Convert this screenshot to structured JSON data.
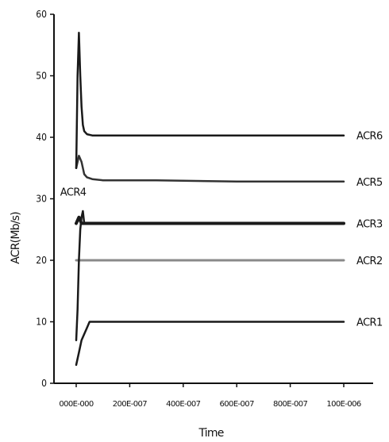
{
  "chart_data": {
    "type": "line",
    "title": "",
    "xlabel": "Time",
    "ylabel": "ACR(Mb/s)",
    "xlim": [
      0,
      1e-06
    ],
    "ylim": [
      0,
      60
    ],
    "x_tick_values": [
      0,
      2e-07,
      4e-07,
      6e-07,
      8e-07,
      1e-06
    ],
    "x_tick_labels": [
      "000E-000",
      "200E-007",
      "400E-007",
      "600E-007",
      "800E-007",
      "100E-006"
    ],
    "y_ticks": [
      0,
      10,
      20,
      30,
      40,
      50,
      60
    ],
    "grid": false,
    "legend": "none",
    "series": [
      {
        "name": "ACR1",
        "color": "#1a1a1a",
        "x": [
          0,
          1e-08,
          2e-08,
          3e-08,
          4e-08,
          5e-08,
          1e-06
        ],
        "y": [
          3,
          5,
          7,
          8,
          9,
          10,
          10
        ]
      },
      {
        "name": "ACR2",
        "color": "#8a8a8a",
        "x": [
          0,
          1e-08,
          2e-08,
          3e-08,
          4e-08,
          1e-06
        ],
        "y": [
          20,
          20,
          20,
          20,
          20,
          20
        ]
      },
      {
        "name": "ACR3",
        "color": "#1a1a1a",
        "x": [
          0,
          1e-08,
          2e-08,
          3e-08,
          1e-06
        ],
        "y": [
          26,
          27,
          26,
          26,
          26
        ]
      },
      {
        "name": "ACR4",
        "color": "#1a1a1a",
        "x": [
          0,
          5e-09,
          1e-08,
          1.5e-08,
          2e-08,
          2.5e-08,
          3e-08
        ],
        "y": [
          7,
          12,
          20,
          25,
          27,
          28,
          26
        ]
      },
      {
        "name": "ACR5",
        "color": "#333333",
        "x": [
          0,
          1e-08,
          2e-08,
          3e-08,
          4e-08,
          6e-08,
          1e-07,
          3e-07,
          6e-07,
          1e-06
        ],
        "y": [
          35,
          37,
          36,
          34,
          33.5,
          33.2,
          33,
          33,
          32.8,
          32.8
        ]
      },
      {
        "name": "ACR6",
        "color": "#1a1a1a",
        "x": [
          0,
          5e-09,
          1e-08,
          1.5e-08,
          2e-08,
          2.5e-08,
          3e-08,
          4e-08,
          6e-08,
          1e-06
        ],
        "y": [
          35,
          50,
          57,
          50,
          45,
          42,
          41,
          40.5,
          40.3,
          40.3
        ]
      }
    ]
  }
}
